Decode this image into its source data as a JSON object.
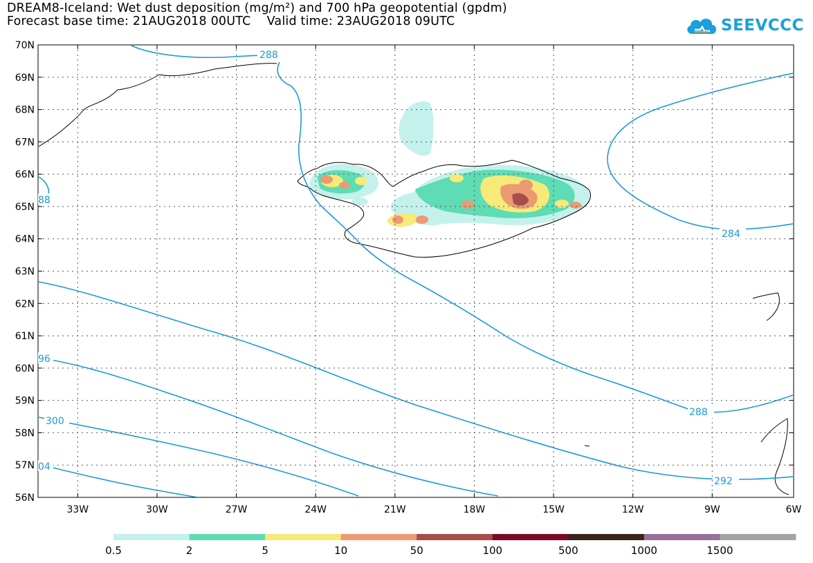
{
  "header": {
    "title_line1": "DREAM8-Iceland: Wet dust deposition (mg/m²) and 700 hPa geopotential (gpdm)",
    "title_line2": "Forecast base time: 21AUG2018 00UTC    Valid time: 23AUG2018 09UTC"
  },
  "logo": {
    "text": "SEEVCCC",
    "icon": "cloud-icon",
    "color": "#1aa0dc"
  },
  "map": {
    "lat_labels": [
      "70N",
      "69N",
      "68N",
      "67N",
      "66N",
      "65N",
      "64N",
      "63N",
      "62N",
      "61N",
      "60N",
      "59N",
      "58N",
      "57N",
      "56N"
    ],
    "lon_labels": [
      "33W",
      "30W",
      "27W",
      "24W",
      "21W",
      "18W",
      "15W",
      "12W",
      "9W",
      "6W"
    ],
    "contour_color": "#1a9ad6",
    "contour_labels": {
      "c288_top": "288",
      "c88_left": "88",
      "c284": "284",
      "c96_left": "96",
      "c288_right": "288",
      "c300": "300",
      "c04_left": "04",
      "c292": "292"
    }
  },
  "legend": {
    "colors": [
      "#c4f1ec",
      "#5edcb4",
      "#f6ea78",
      "#eb9a72",
      "#a84e4a",
      "#7a0a26",
      "#3a2618",
      "#98709a",
      "#a4a4a4"
    ],
    "labels": [
      "0.5",
      "2",
      "5",
      "10",
      "50",
      "100",
      "500",
      "1000",
      "1500"
    ]
  }
}
